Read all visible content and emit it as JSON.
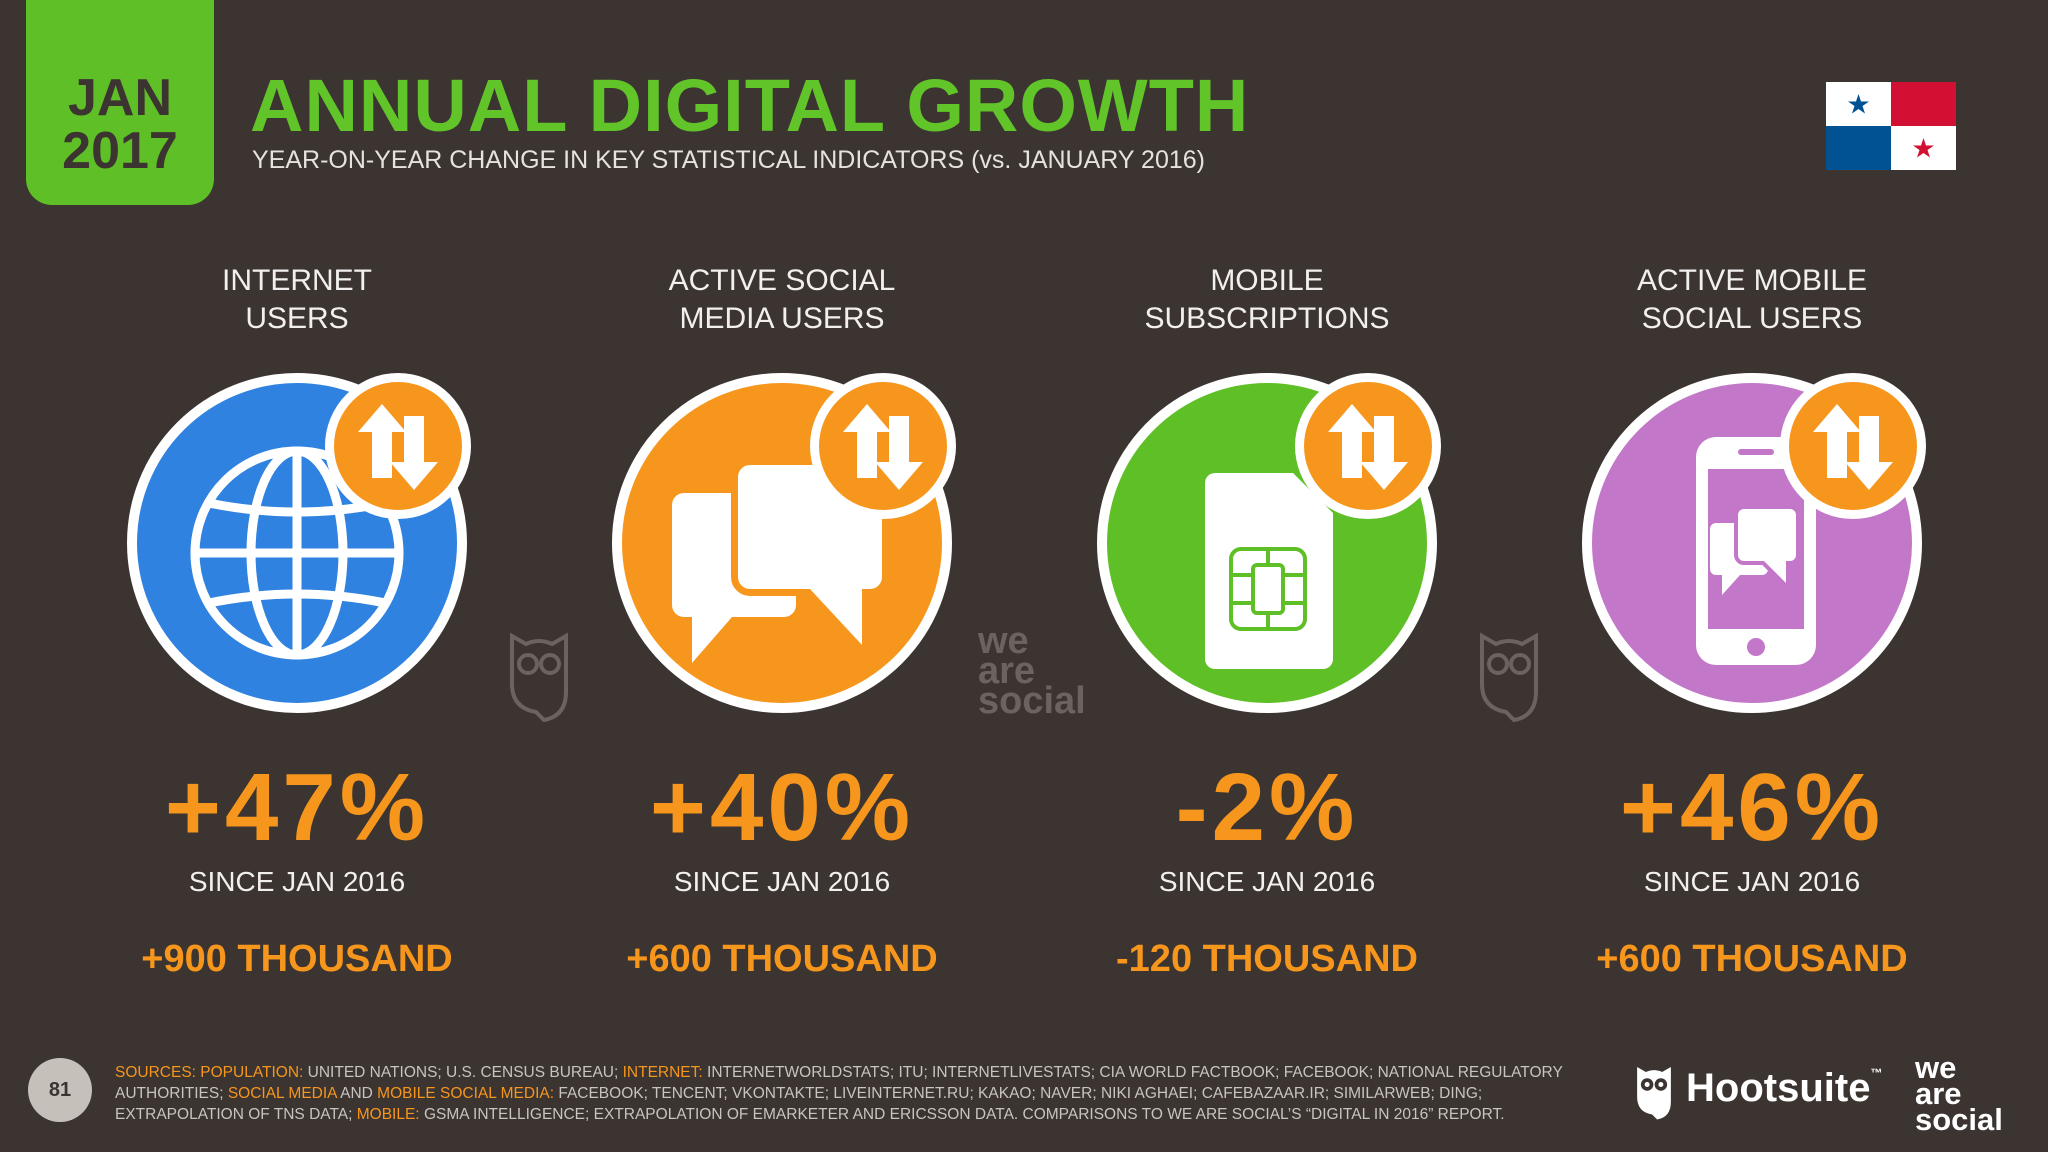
{
  "header": {
    "month": "JAN",
    "year": "2017",
    "title": "ANNUAL DIGITAL GROWTH",
    "subtitle": "YEAR-ON-YEAR CHANGE IN KEY STATISTICAL INDICATORS (vs. JANUARY 2016)"
  },
  "colors": {
    "green": "#61c52a",
    "orange": "#f7961d",
    "blue": "#2f82e0",
    "purple": "#c377c9",
    "background": "#3b3431"
  },
  "stats": [
    {
      "label_line1": "INTERNET",
      "label_line2": "USERS",
      "icon": "globe-icon",
      "percent": "+47%",
      "since": "SINCE JAN 2016",
      "absolute": "+900 THOUSAND"
    },
    {
      "label_line1": "ACTIVE SOCIAL",
      "label_line2": "MEDIA USERS",
      "icon": "chat-bubbles-icon",
      "percent": "+40%",
      "since": "SINCE JAN 2016",
      "absolute": "+600 THOUSAND"
    },
    {
      "label_line1": "MOBILE",
      "label_line2": "SUBSCRIPTIONS",
      "icon": "sim-card-icon",
      "percent": "-2%",
      "since": "SINCE JAN 2016",
      "absolute": "-120 THOUSAND"
    },
    {
      "label_line1": "ACTIVE MOBILE",
      "label_line2": "SOCIAL USERS",
      "icon": "phone-chat-icon",
      "percent": "+46%",
      "since": "SINCE JAN 2016",
      "absolute": "+600 THOUSAND"
    }
  ],
  "watermark": {
    "line1": "we",
    "line2": "are",
    "line3": "social"
  },
  "footer": {
    "page_number": "81",
    "sources": {
      "k_sources": "SOURCES:",
      "k_population": "POPULATION:",
      "t_population": "UNITED NATIONS; U.S. CENSUS BUREAU;",
      "k_internet": "INTERNET:",
      "t_internet": "INTERNETWORLDSTATS; ITU; INTERNETLIVESTATS; CIA WORLD FACTBOOK; FACEBOOK; NATIONAL REGULATORY AUTHORITIES;",
      "k_social": "SOCIAL MEDIA",
      "t_and": "AND",
      "k_mobile_social": "MOBILE SOCIAL MEDIA:",
      "t_social": "FACEBOOK; TENCENT; VKONTAKTE; LIVEINTERNET.RU; KAKAO; NAVER; NIKI AGHAEI; CAFEBAZAAR.IR; SIMILARWEB; DING; EXTRAPOLATION OF TNS DATA;",
      "k_mobile": "MOBILE:",
      "t_mobile": "GSMA INTELLIGENCE; EXTRAPOLATION OF EMARKETER AND ERICSSON DATA. COMPARISONS TO WE ARE SOCIAL’S “DIGITAL IN 2016” REPORT."
    },
    "brand": "Hootsuite",
    "brand_tm": "™",
    "was_line1": "we",
    "was_line2": "are",
    "was_line3": "social"
  }
}
